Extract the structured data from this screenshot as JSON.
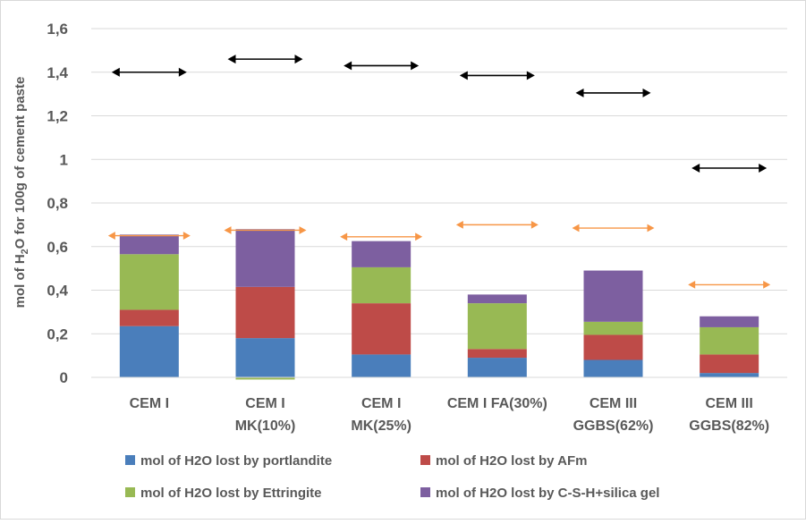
{
  "chart_data": {
    "type": "bar",
    "stacked": true,
    "title": "",
    "xlabel": "",
    "ylabel": "mol of H2O for 100g of cement paste",
    "ylabel_parts": [
      "mol of H",
      "2",
      "O for 100g of cement paste"
    ],
    "ylim": [
      0,
      1.6
    ],
    "yticks": [
      {
        "value": 0,
        "label": "0"
      },
      {
        "value": 0.2,
        "label": "0,2"
      },
      {
        "value": 0.4,
        "label": "0,4"
      },
      {
        "value": 0.6,
        "label": "0,6"
      },
      {
        "value": 0.8,
        "label": "0,8"
      },
      {
        "value": 1.0,
        "label": "1"
      },
      {
        "value": 1.2,
        "label": "1,2"
      },
      {
        "value": 1.4,
        "label": "1,4"
      },
      {
        "value": 1.6,
        "label": "1,6"
      }
    ],
    "grid": true,
    "legend_position": "bottom",
    "categories": [
      [
        "CEM I"
      ],
      [
        "CEM I",
        "MK(10%)"
      ],
      [
        "CEM I",
        "MK(25%)"
      ],
      [
        "CEM I FA(30%)"
      ],
      [
        "CEM III",
        "GGBS(62%)"
      ],
      [
        "CEM III",
        "GGBS(82%)"
      ]
    ],
    "series": [
      {
        "name": "mol of H2O lost by portlandite",
        "color": "#4a7ebb",
        "values": [
          0.235,
          0.18,
          0.105,
          0.09,
          0.08,
          0.02
        ]
      },
      {
        "name": "mol of H2O lost by AFm",
        "color": "#be4b48",
        "values": [
          0.075,
          0.235,
          0.235,
          0.04,
          0.115,
          0.085
        ]
      },
      {
        "name": "mol of H2O lost by Ettringite",
        "color": "#98b954",
        "values": [
          0.255,
          -0.01,
          0.165,
          0.21,
          0.06,
          0.125
        ]
      },
      {
        "name": "mol of H2O lost by C-S-H+silica gel",
        "color": "#7d5fa0",
        "values": [
          0.09,
          0.265,
          0.12,
          0.04,
          0.235,
          0.05
        ]
      }
    ],
    "annotations": {
      "black_arrows": [
        {
          "category_index": 0,
          "y": 1.4
        },
        {
          "category_index": 1,
          "y": 1.46
        },
        {
          "category_index": 2,
          "y": 1.43
        },
        {
          "category_index": 3,
          "y": 1.385
        },
        {
          "category_index": 4,
          "y": 1.305
        },
        {
          "category_index": 5,
          "y": 0.96
        }
      ],
      "orange_arrows": [
        {
          "category_index": 0,
          "y": 0.65
        },
        {
          "category_index": 1,
          "y": 0.675
        },
        {
          "category_index": 2,
          "y": 0.645
        },
        {
          "category_index": 3,
          "y": 0.7
        },
        {
          "category_index": 4,
          "y": 0.685
        },
        {
          "category_index": 5,
          "y": 0.425
        }
      ],
      "black_color": "#000000",
      "orange_color": "#f79646"
    },
    "grid_color": "#d9d9d9",
    "text_color": "#595959"
  }
}
